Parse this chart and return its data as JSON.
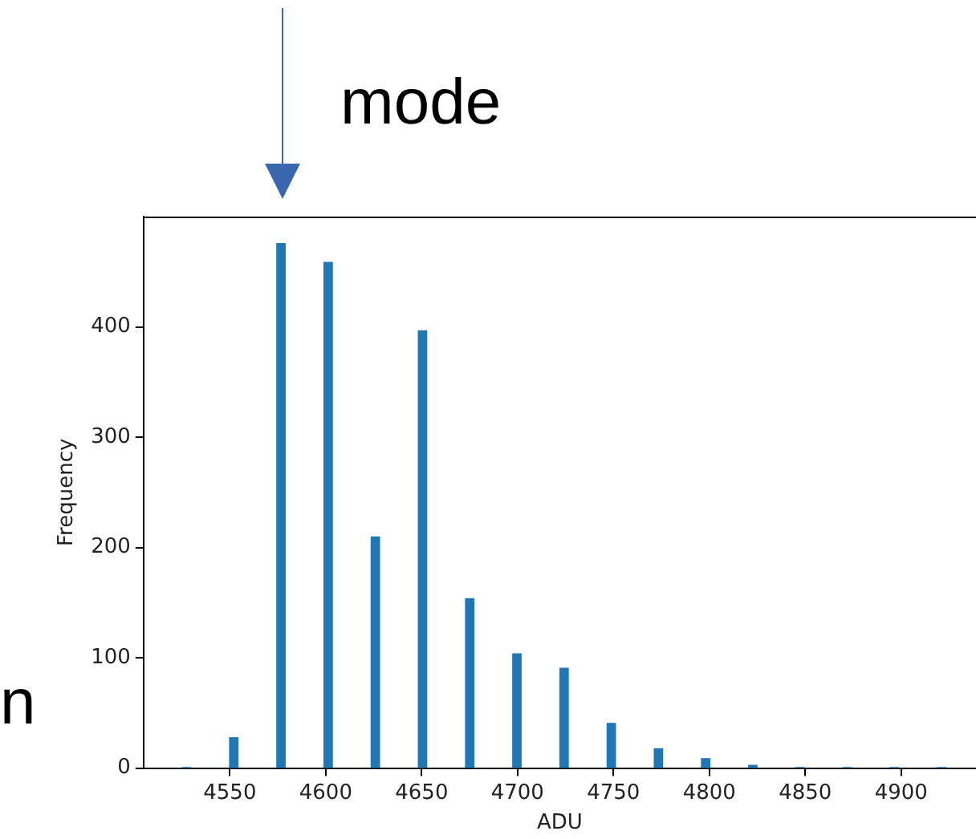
{
  "chart_data": {
    "type": "histogram",
    "xlabel": "ADU",
    "ylabel": "Frequency",
    "bins": [
      4525,
      4529.92,
      4549.6,
      4554.52,
      4574.2,
      4579.12,
      4598.8,
      4603.72,
      4623.4,
      4628.32,
      4648,
      4652.92,
      4672.6,
      4677.52,
      4697.2,
      4702.12,
      4721.8,
      4726.72,
      4746.4,
      4751.32,
      4771,
      4775.92,
      4795.6,
      4800.52,
      4820.2,
      4825.12,
      4844.8,
      4849.72,
      4869.4,
      4874.32,
      4894,
      4898.92,
      4918.6,
      4923.52
    ],
    "values": [
      1,
      0,
      28,
      0,
      476,
      0,
      459,
      0,
      210,
      0,
      397,
      0,
      154,
      0,
      104,
      0,
      91,
      0,
      41,
      0,
      18,
      0,
      9,
      0,
      3,
      0,
      1,
      0,
      1,
      0,
      1,
      0,
      1
    ],
    "color": "#1f77b4",
    "xlim": [
      4505,
      4939
    ],
    "xticks": [
      4550,
      4600,
      4650,
      4700,
      4750,
      4800,
      4850,
      4900
    ],
    "ylim": [
      0,
      500
    ],
    "yticks": [
      0,
      100,
      200,
      300,
      400
    ],
    "grid": false,
    "legend": false,
    "annotations": [
      "mode",
      "n"
    ]
  }
}
